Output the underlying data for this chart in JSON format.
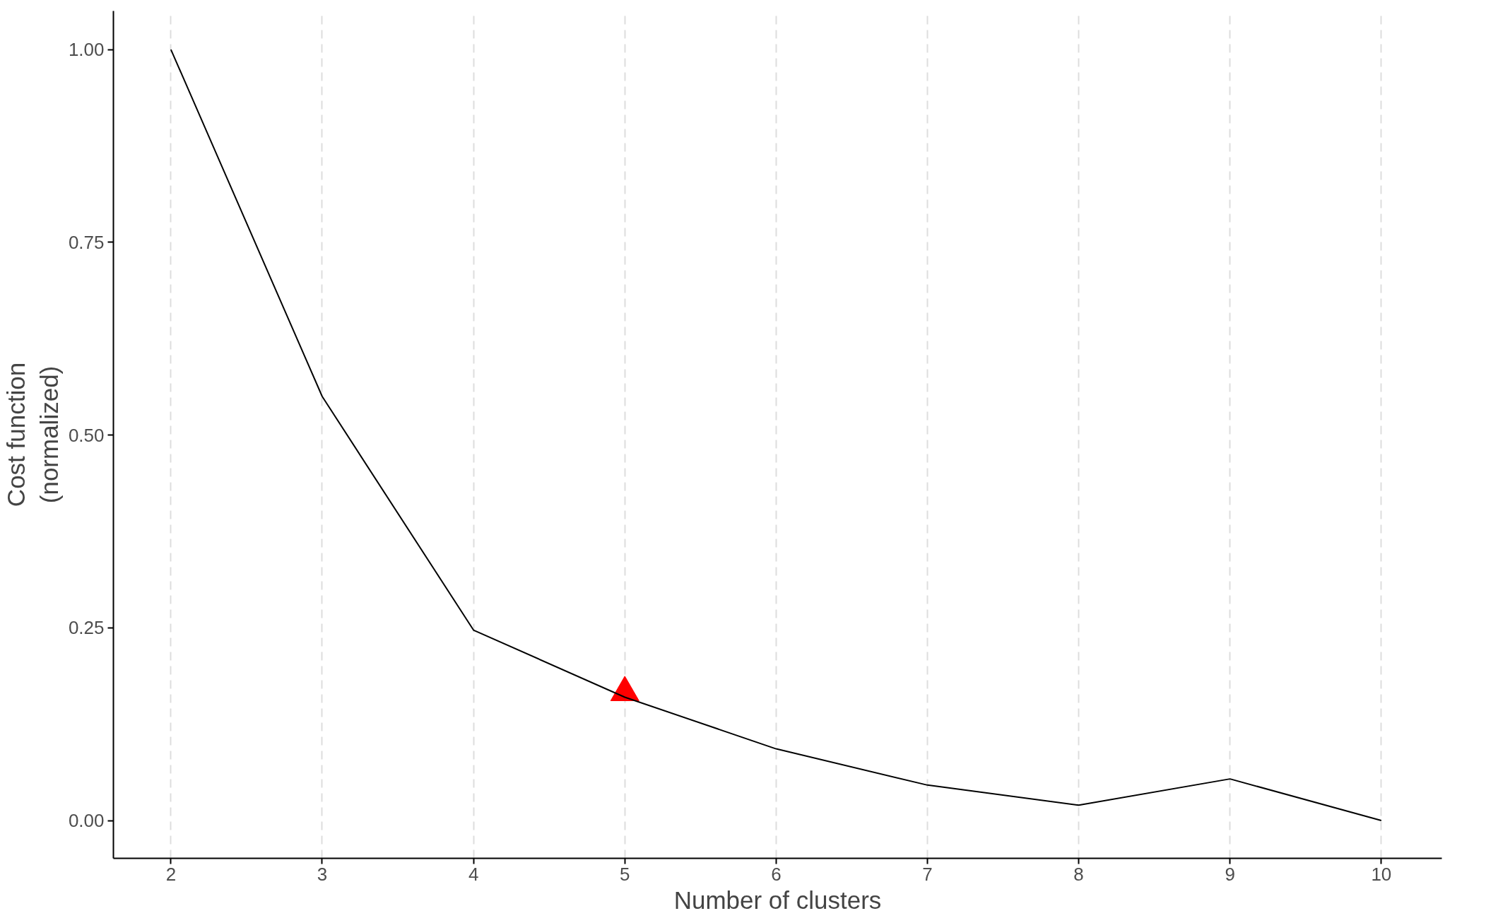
{
  "chart_data": {
    "type": "line",
    "xlabel": "Number of clusters",
    "ylabel": "Cost function\n(normalized)",
    "x": [
      2,
      3,
      4,
      5,
      6,
      7,
      8,
      9,
      10
    ],
    "series": [
      {
        "color": "#000000",
        "values": [
          1.0,
          0.55,
          0.247,
          0.16,
          0.093,
          0.046,
          0.02,
          0.054,
          0.0
        ]
      },
      {
        "type": "scatter",
        "marker": "triangle",
        "color": "#ff0000",
        "x": [
          5
        ],
        "values": [
          0.166
        ]
      }
    ],
    "xlim": [
      1.62,
      10.4
    ],
    "ylim": [
      -0.049,
      1.05
    ],
    "xticks": [
      2,
      3,
      4,
      5,
      6,
      7,
      8,
      9,
      10
    ],
    "yticks": [
      {
        "value": 0,
        "label": "0.00"
      },
      {
        "value": 0.25,
        "label": "0.25"
      },
      {
        "value": 0.5,
        "label": "0.50"
      },
      {
        "value": 0.75,
        "label": "0.75"
      },
      {
        "value": 1,
        "label": "1.00"
      }
    ],
    "grid": "x",
    "line_style": "solid"
  }
}
